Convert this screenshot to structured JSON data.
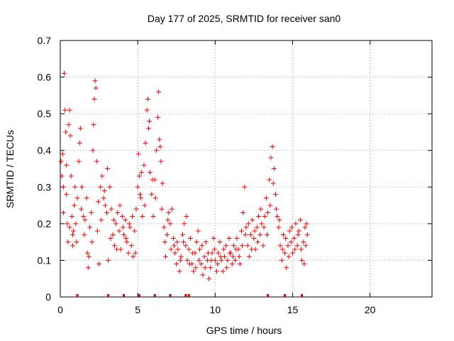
{
  "chart_data": {
    "type": "scatter",
    "title": "Day 177 of 2025, SRMTID for receiver san0",
    "xlabel": "GPS time / hours",
    "ylabel": "SRMTID / TECUs",
    "xlim": [
      0,
      24
    ],
    "ylim": [
      0,
      0.7
    ],
    "xticks": [
      0,
      5,
      10,
      15,
      20
    ],
    "yticks": [
      0,
      0.1,
      0.2,
      0.3,
      0.4,
      0.5,
      0.6,
      0.7
    ],
    "xtick_labels": [
      "0",
      "5",
      "10",
      "15",
      "20"
    ],
    "ytick_labels": [
      "0",
      "0.1",
      "0.2",
      "0.3",
      "0.4",
      "0.5",
      "0.6",
      "0.7"
    ],
    "grid": true,
    "marker": "+",
    "marker_color": "#ff0000",
    "series": [
      {
        "name": "SRMTID",
        "points": [
          [
            0.05,
            0.37
          ],
          [
            0.1,
            0.33
          ],
          [
            0.15,
            0.39
          ],
          [
            0.2,
            0.3
          ],
          [
            0.25,
            0.61
          ],
          [
            0.3,
            0.51
          ],
          [
            0.35,
            0.45
          ],
          [
            0.4,
            0.36
          ],
          [
            0.45,
            0.2
          ],
          [
            0.5,
            0.15
          ],
          [
            0.55,
            0.47
          ],
          [
            0.6,
            0.51
          ],
          [
            0.65,
            0.44
          ],
          [
            0.7,
            0.33
          ],
          [
            0.75,
            0.22
          ],
          [
            0.8,
            0.17
          ],
          [
            0.85,
            0.18
          ],
          [
            0.9,
            0.25
          ],
          [
            0.95,
            0.3
          ],
          [
            1.0,
            0.2
          ],
          [
            1.1,
            0.27
          ],
          [
            1.2,
            0.37
          ],
          [
            1.25,
            0.42
          ],
          [
            1.3,
            0.46
          ],
          [
            1.4,
            0.3
          ],
          [
            1.5,
            0.22
          ],
          [
            1.6,
            0.21
          ],
          [
            1.7,
            0.27
          ],
          [
            1.75,
            0.12
          ],
          [
            1.8,
            0.08
          ],
          [
            1.9,
            0.19
          ],
          [
            2.0,
            0.23
          ],
          [
            2.1,
            0.4
          ],
          [
            2.15,
            0.47
          ],
          [
            2.2,
            0.54
          ],
          [
            2.25,
            0.59
          ],
          [
            2.3,
            0.57
          ],
          [
            2.35,
            0.37
          ],
          [
            2.4,
            0.18
          ],
          [
            2.5,
            0.09
          ],
          [
            2.6,
            0.3
          ],
          [
            2.7,
            0.33
          ],
          [
            2.8,
            0.27
          ],
          [
            2.9,
            0.25
          ],
          [
            3.0,
            0.23
          ],
          [
            3.1,
            0.1
          ],
          [
            3.2,
            0.3
          ],
          [
            3.3,
            0.24
          ],
          [
            3.4,
            0.17
          ],
          [
            3.5,
            0.14
          ],
          [
            3.6,
            0.2
          ],
          [
            3.7,
            0.23
          ],
          [
            3.8,
            0.18
          ],
          [
            3.9,
            0.13
          ],
          [
            4.0,
            0.22
          ],
          [
            4.1,
            0.17
          ],
          [
            4.2,
            0.21
          ],
          [
            4.3,
            0.15
          ],
          [
            4.4,
            0.12
          ],
          [
            4.5,
            0.19
          ],
          [
            4.6,
            0.14
          ],
          [
            4.7,
            0.11
          ],
          [
            4.8,
            0.18
          ],
          [
            4.9,
            0.24
          ],
          [
            5.0,
            0.3
          ],
          [
            5.05,
            0.39
          ],
          [
            5.1,
            0.33
          ],
          [
            5.15,
            0.28
          ],
          [
            5.2,
            0.27
          ],
          [
            5.3,
            0.22
          ],
          [
            5.4,
            0.36
          ],
          [
            5.5,
            0.42
          ],
          [
            5.6,
            0.51
          ],
          [
            5.65,
            0.54
          ],
          [
            5.7,
            0.46
          ],
          [
            5.8,
            0.34
          ],
          [
            5.9,
            0.28
          ],
          [
            6.0,
            0.22
          ],
          [
            6.1,
            0.32
          ],
          [
            6.2,
            0.4
          ],
          [
            6.3,
            0.49
          ],
          [
            6.35,
            0.56
          ],
          [
            6.4,
            0.43
          ],
          [
            6.5,
            0.37
          ],
          [
            6.6,
            0.31
          ],
          [
            6.7,
            0.19
          ],
          [
            6.8,
            0.11
          ],
          [
            6.9,
            0.17
          ],
          [
            7.0,
            0.23
          ],
          [
            7.1,
            0.2
          ],
          [
            7.2,
            0.24
          ],
          [
            7.3,
            0.16
          ],
          [
            7.4,
            0.12
          ],
          [
            7.5,
            0.09
          ],
          [
            7.6,
            0.13
          ],
          [
            7.7,
            0.07
          ],
          [
            7.8,
            0.11
          ],
          [
            7.9,
            0.17
          ],
          [
            8.0,
            0.2
          ],
          [
            8.1,
            0.14
          ],
          [
            8.2,
            0.1
          ],
          [
            8.3,
            0.13
          ],
          [
            8.4,
            0.16
          ],
          [
            8.5,
            0.09
          ],
          [
            8.6,
            0.07
          ],
          [
            8.7,
            0.12
          ],
          [
            8.8,
            0.15
          ],
          [
            8.9,
            0.18
          ],
          [
            9.0,
            0.13
          ],
          [
            9.1,
            0.09
          ],
          [
            9.2,
            0.06
          ],
          [
            9.3,
            0.11
          ],
          [
            9.4,
            0.15
          ],
          [
            9.5,
            0.1
          ],
          [
            9.6,
            0.05
          ],
          [
            9.7,
            0.08
          ],
          [
            9.8,
            0.12
          ],
          [
            9.9,
            0.16
          ],
          [
            10.0,
            0.1
          ],
          [
            10.1,
            0.07
          ],
          [
            10.2,
            0.12
          ],
          [
            10.3,
            0.15
          ],
          [
            10.4,
            0.1
          ],
          [
            10.5,
            0.07
          ],
          [
            10.6,
            0.11
          ],
          [
            10.7,
            0.14
          ],
          [
            10.8,
            0.1
          ],
          [
            10.9,
            0.16
          ],
          [
            11.0,
            0.12
          ],
          [
            11.1,
            0.09
          ],
          [
            11.2,
            0.14
          ],
          [
            11.3,
            0.1
          ],
          [
            11.4,
            0.16
          ],
          [
            11.5,
            0.13
          ],
          [
            11.6,
            0.09
          ],
          [
            11.7,
            0.18
          ],
          [
            11.8,
            0.23
          ],
          [
            11.9,
            0.3
          ],
          [
            12.0,
            0.19
          ],
          [
            12.1,
            0.14
          ],
          [
            12.2,
            0.11
          ],
          [
            12.3,
            0.17
          ],
          [
            12.4,
            0.21
          ],
          [
            12.5,
            0.16
          ],
          [
            12.6,
            0.13
          ],
          [
            12.7,
            0.19
          ],
          [
            12.8,
            0.22
          ],
          [
            12.9,
            0.17
          ],
          [
            13.0,
            0.2
          ],
          [
            13.1,
            0.14
          ],
          [
            13.2,
            0.22
          ],
          [
            13.3,
            0.27
          ],
          [
            13.4,
            0.23
          ],
          [
            13.5,
            0.32
          ],
          [
            13.6,
            0.38
          ],
          [
            13.7,
            0.41
          ],
          [
            13.8,
            0.35
          ],
          [
            13.9,
            0.28
          ],
          [
            14.0,
            0.22
          ],
          [
            14.1,
            0.19
          ],
          [
            14.2,
            0.14
          ],
          [
            14.3,
            0.1
          ],
          [
            14.4,
            0.17
          ],
          [
            14.5,
            0.12
          ],
          [
            14.6,
            0.08
          ],
          [
            14.7,
            0.14
          ],
          [
            14.8,
            0.18
          ],
          [
            14.9,
            0.15
          ],
          [
            15.0,
            0.12
          ],
          [
            15.1,
            0.16
          ],
          [
            15.2,
            0.2
          ],
          [
            15.3,
            0.14
          ],
          [
            15.4,
            0.18
          ],
          [
            15.5,
            0.21
          ],
          [
            15.6,
            0.1
          ],
          [
            15.7,
            0.15
          ],
          [
            15.8,
            0.19
          ],
          [
            15.9,
            0.2
          ],
          [
            15.95,
            0.17
          ],
          [
            0.2,
            0.23
          ],
          [
            0.4,
            0.28
          ],
          [
            0.6,
            0.19
          ],
          [
            0.8,
            0.14
          ],
          [
            1.05,
            0.15
          ],
          [
            1.35,
            0.24
          ],
          [
            1.55,
            0.17
          ],
          [
            1.85,
            0.11
          ],
          [
            2.05,
            0.15
          ],
          [
            2.45,
            0.26
          ],
          [
            2.65,
            0.21
          ],
          [
            2.85,
            0.29
          ],
          [
            3.05,
            0.35
          ],
          [
            3.25,
            0.16
          ],
          [
            3.45,
            0.21
          ],
          [
            3.65,
            0.13
          ],
          [
            3.85,
            0.25
          ],
          [
            4.05,
            0.19
          ],
          [
            4.25,
            0.16
          ],
          [
            4.45,
            0.2
          ],
          [
            4.65,
            0.22
          ],
          [
            4.85,
            0.12
          ],
          [
            5.25,
            0.34
          ],
          [
            5.45,
            0.25
          ],
          [
            5.75,
            0.48
          ],
          [
            5.95,
            0.32
          ],
          [
            6.15,
            0.27
          ],
          [
            6.45,
            0.41
          ],
          [
            6.55,
            0.24
          ],
          [
            6.75,
            0.15
          ],
          [
            6.95,
            0.21
          ],
          [
            7.15,
            0.13
          ],
          [
            7.35,
            0.14
          ],
          [
            7.55,
            0.15
          ],
          [
            7.75,
            0.1
          ],
          [
            7.95,
            0.15
          ],
          [
            8.15,
            0.22
          ],
          [
            8.35,
            0.09
          ],
          [
            8.55,
            0.12
          ],
          [
            8.75,
            0.08
          ],
          [
            8.95,
            0.1
          ],
          [
            9.15,
            0.14
          ],
          [
            9.35,
            0.08
          ],
          [
            9.55,
            0.12
          ],
          [
            9.75,
            0.1
          ],
          [
            9.95,
            0.13
          ],
          [
            10.15,
            0.09
          ],
          [
            10.35,
            0.11
          ],
          [
            10.55,
            0.13
          ],
          [
            10.75,
            0.08
          ],
          [
            10.95,
            0.12
          ],
          [
            11.15,
            0.11
          ],
          [
            11.35,
            0.13
          ],
          [
            11.55,
            0.11
          ],
          [
            11.75,
            0.14
          ],
          [
            11.95,
            0.17
          ],
          [
            12.15,
            0.2
          ],
          [
            12.35,
            0.13
          ],
          [
            12.55,
            0.18
          ],
          [
            12.75,
            0.15
          ],
          [
            12.95,
            0.24
          ],
          [
            13.15,
            0.19
          ],
          [
            13.35,
            0.17
          ],
          [
            13.55,
            0.25
          ],
          [
            13.75,
            0.31
          ],
          [
            13.95,
            0.24
          ],
          [
            14.15,
            0.21
          ],
          [
            14.35,
            0.13
          ],
          [
            14.55,
            0.16
          ],
          [
            14.75,
            0.11
          ],
          [
            14.95,
            0.19
          ],
          [
            15.15,
            0.13
          ],
          [
            15.35,
            0.17
          ],
          [
            15.55,
            0.13
          ],
          [
            15.75,
            0.09
          ],
          [
            15.85,
            0.14
          ]
        ]
      }
    ],
    "rug_x": [
      1.1,
      3.1,
      4.1,
      5.1,
      6.1,
      7.1,
      8.1,
      8.3,
      13.4,
      14.5,
      15.6
    ]
  }
}
